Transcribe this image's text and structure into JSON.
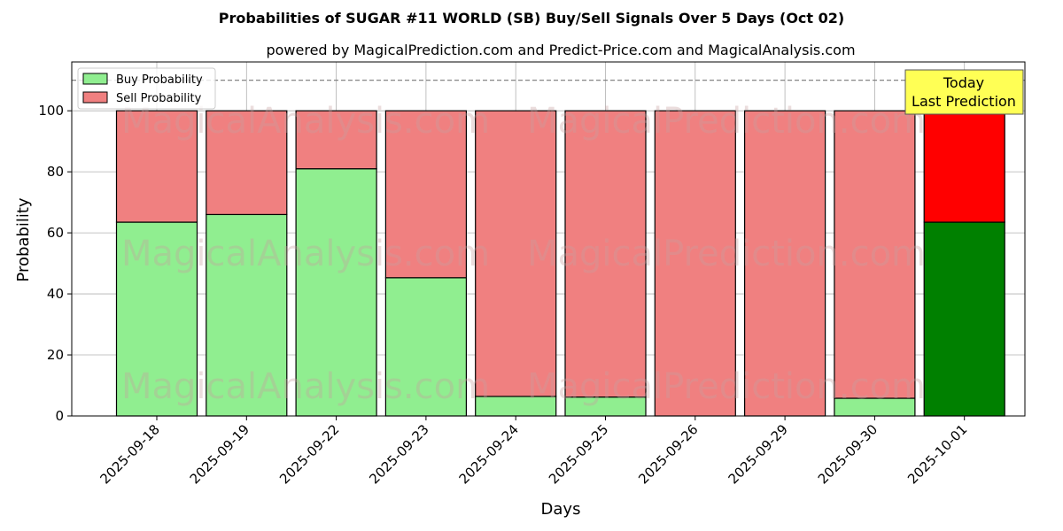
{
  "title": "Probabilities of SUGAR #11 WORLD (SB) Buy/Sell Signals Over 5 Days (Oct 02)",
  "subtitle": "powered by MagicalPrediction.com and Predict-Price.com and MagicalAnalysis.com",
  "watermarks": [
    "MagicalAnalysis.com",
    "MagicalPrediction.com"
  ],
  "annotation": {
    "line1": "Today",
    "line2": "Last Prediction",
    "bg": "#ffff55"
  },
  "chart_data": {
    "type": "bar",
    "stacked": true,
    "categories": [
      "2025-09-18",
      "2025-09-19",
      "2025-09-22",
      "2025-09-23",
      "2025-09-24",
      "2025-09-25",
      "2025-09-26",
      "2025-09-29",
      "2025-09-30",
      "2025-10-01"
    ],
    "series": [
      {
        "name": "Buy Probability",
        "values": [
          63.5,
          66.0,
          81.0,
          45.3,
          6.4,
          6.2,
          0.0,
          0.0,
          5.8,
          63.5
        ],
        "color": "#90ee90",
        "highlight_color": "#008000"
      },
      {
        "name": "Sell Probability",
        "values": [
          36.5,
          34.0,
          19.0,
          54.7,
          93.6,
          93.8,
          100.0,
          100.0,
          94.2,
          36.5
        ],
        "color": "#f08080",
        "highlight_color": "#ff0000"
      }
    ],
    "highlight_index": 9,
    "xlabel": "Days",
    "ylabel": "Probability",
    "ylim": [
      0,
      116
    ],
    "yticks": [
      0,
      20,
      40,
      60,
      80,
      100
    ],
    "reference_line": 110,
    "grid": true,
    "legend": "top-left"
  }
}
